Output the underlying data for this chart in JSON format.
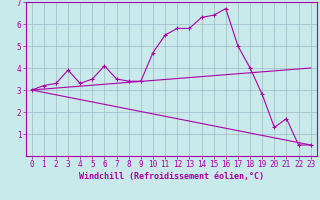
{
  "background_color": "#c8eaea",
  "grid_color": "#a0b8c8",
  "line_color": "#aa00aa",
  "xlabel": "Windchill (Refroidissement éolien,°C)",
  "xlabel_color": "#aa00aa",
  "xlim": [
    -0.5,
    23.5
  ],
  "ylim": [
    0,
    7
  ],
  "xticks": [
    0,
    1,
    2,
    3,
    4,
    5,
    6,
    7,
    8,
    9,
    10,
    11,
    12,
    13,
    14,
    15,
    16,
    17,
    18,
    19,
    20,
    21,
    22,
    23
  ],
  "yticks": [
    1,
    2,
    3,
    4,
    5,
    6,
    7
  ],
  "series1_x": [
    0,
    1,
    2,
    3,
    4,
    5,
    6,
    7,
    8,
    9,
    10,
    11,
    12,
    13,
    14,
    15,
    16,
    17,
    18,
    19,
    20,
    21,
    22,
    23
  ],
  "series1_y": [
    3.0,
    3.2,
    3.3,
    3.9,
    3.3,
    3.5,
    4.1,
    3.5,
    3.4,
    3.4,
    4.7,
    5.5,
    5.8,
    5.8,
    6.3,
    6.4,
    6.7,
    5.0,
    4.0,
    2.8,
    1.3,
    1.7,
    0.5,
    0.5
  ],
  "series2_x": [
    0,
    23
  ],
  "series2_y": [
    3.0,
    4.0
  ],
  "series3_x": [
    0,
    23
  ],
  "series3_y": [
    3.0,
    0.5
  ],
  "tick_label_size": 5.5,
  "tick_color": "#aa00aa",
  "axis_color": "#aa00aa"
}
